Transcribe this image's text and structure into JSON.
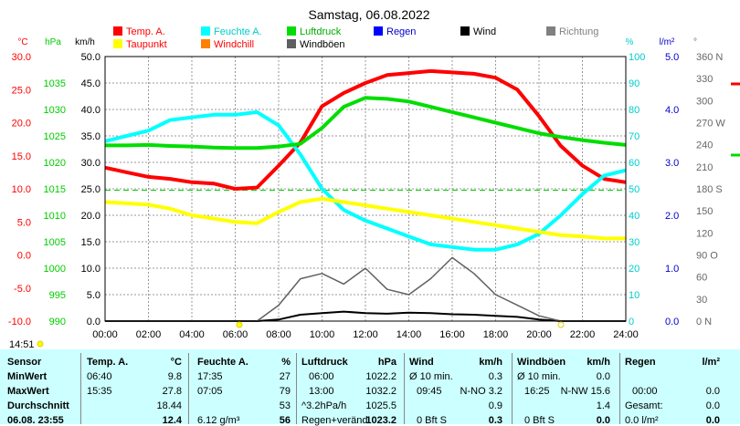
{
  "chart_data": {
    "type": "line",
    "title": "Samstag, 06.08.2022",
    "x_axis": {
      "start": "00:00",
      "end": "24:00",
      "ticks": [
        "00:00",
        "02:00",
        "04:00",
        "06:00",
        "08:00",
        "10:00",
        "12:00",
        "14:00",
        "16:00",
        "18:00",
        "20:00",
        "22:00",
        "24:00"
      ]
    },
    "axes": [
      {
        "label": "°C",
        "color": "#ff0000",
        "range": [
          -10,
          30
        ],
        "ticks": [
          "30.0",
          "25.0",
          "20.0",
          "15.0",
          "10.0",
          "5.0",
          "0.0",
          "-5.0",
          "-10.0"
        ]
      },
      {
        "label": "hPa",
        "color": "#00cc00",
        "range": [
          990,
          1040
        ],
        "ticks": [
          "1035",
          "1030",
          "1025",
          "1020",
          "1015",
          "1010",
          "1005",
          "1000",
          "995",
          "990"
        ]
      },
      {
        "label": "km/h",
        "color": "#000000",
        "range": [
          0,
          50
        ],
        "ticks": [
          "50.0",
          "45.0",
          "40.0",
          "35.0",
          "30.0",
          "25.0",
          "20.0",
          "15.0",
          "10.0",
          "5.0",
          "0.0"
        ]
      },
      {
        "label": "%",
        "color": "#00cccc",
        "range": [
          0,
          100
        ],
        "ticks": [
          "100",
          "90",
          "80",
          "70",
          "60",
          "50",
          "40",
          "30",
          "20",
          "10",
          "0"
        ]
      },
      {
        "label": "l/m²",
        "color": "#0000cc",
        "range": [
          0,
          5
        ],
        "ticks": [
          "5.0",
          "4.0",
          "3.0",
          "2.0",
          "1.0",
          "0.0"
        ]
      },
      {
        "label": "°",
        "color": "#666666",
        "range": [
          0,
          360
        ],
        "ticks": [
          "360 N",
          "330",
          "300",
          "270 W",
          "240",
          "210",
          "180 S",
          "150",
          "120",
          "90 O",
          "60",
          "30",
          "0   N"
        ]
      }
    ],
    "legend": [
      {
        "name": "Temp. A.",
        "color": "#ff0000"
      },
      {
        "name": "Feuchte A.",
        "color": "#00ffff"
      },
      {
        "name": "Luftdruck",
        "color": "#00dd00"
      },
      {
        "name": "Regen",
        "color": "#0000ff"
      },
      {
        "name": "Wind",
        "color": "#000000"
      },
      {
        "name": "Richtung",
        "color": "#808080"
      },
      {
        "name": "Taupunkt",
        "color": "#ffff00"
      },
      {
        "name": "Windchill",
        "color": "#ff8000"
      },
      {
        "name": "Windböen",
        "color": "#606060"
      }
    ],
    "series": [
      {
        "name": "Temp. A.",
        "color": "#ff0000",
        "axis": "°C",
        "x": [
          0,
          1,
          2,
          3,
          4,
          5,
          6,
          7,
          8,
          9,
          10,
          11,
          12,
          13,
          14,
          15,
          16,
          17,
          18,
          19,
          20,
          21,
          22,
          23,
          24
        ],
        "y": [
          13.2,
          12.5,
          11.8,
          11.5,
          11.0,
          10.8,
          10.0,
          10.2,
          13.5,
          17.0,
          22.5,
          24.5,
          26.0,
          27.2,
          27.5,
          27.8,
          27.6,
          27.4,
          26.8,
          25.0,
          21.0,
          16.5,
          13.5,
          11.5,
          11.0
        ]
      },
      {
        "name": "Feuchte A.",
        "color": "#00ffff",
        "axis": "%",
        "x": [
          0,
          1,
          2,
          3,
          4,
          5,
          6,
          7,
          8,
          9,
          10,
          11,
          12,
          13,
          14,
          15,
          16,
          17,
          18,
          19,
          20,
          21,
          22,
          23,
          24
        ],
        "y": [
          68,
          70,
          72,
          76,
          77,
          78,
          78,
          79,
          74,
          63,
          50,
          42,
          38,
          35,
          32,
          29,
          28,
          27,
          27,
          29,
          33,
          40,
          48,
          55,
          57
        ]
      },
      {
        "name": "Luftdruck",
        "color": "#00dd00",
        "axis": "hPa",
        "x": [
          0,
          1,
          2,
          3,
          4,
          5,
          6,
          7,
          8,
          9,
          10,
          11,
          12,
          13,
          14,
          15,
          16,
          17,
          18,
          19,
          20,
          21,
          22,
          23,
          24
        ],
        "y": [
          1023.2,
          1023.2,
          1023.3,
          1023.1,
          1023.0,
          1022.8,
          1022.7,
          1022.7,
          1023.0,
          1023.5,
          1026.5,
          1030.5,
          1032.2,
          1032.0,
          1031.5,
          1030.5,
          1029.5,
          1028.5,
          1027.5,
          1026.5,
          1025.5,
          1024.8,
          1024.2,
          1023.7,
          1023.3
        ]
      },
      {
        "name": "Taupunkt",
        "color": "#ffff00",
        "axis": "°C",
        "x": [
          0,
          1,
          2,
          3,
          4,
          5,
          6,
          7,
          8,
          9,
          10,
          11,
          12,
          13,
          14,
          15,
          16,
          17,
          18,
          19,
          20,
          21,
          22,
          23,
          24
        ],
        "y": [
          8.0,
          7.8,
          7.6,
          7.0,
          6.0,
          5.5,
          5.0,
          4.8,
          6.5,
          8.0,
          8.5,
          8.0,
          7.5,
          7.0,
          6.5,
          6.0,
          5.5,
          5.0,
          4.5,
          4.0,
          3.5,
          3.0,
          2.8,
          2.5,
          2.5
        ]
      },
      {
        "name": "Wind",
        "color": "#000000",
        "axis": "km/h",
        "x": [
          0,
          1,
          2,
          3,
          4,
          5,
          6,
          7,
          8,
          9,
          10,
          11,
          12,
          13,
          14,
          15,
          16,
          17,
          18,
          19,
          20,
          21,
          22,
          23,
          24
        ],
        "y": [
          0,
          0,
          0,
          0,
          0,
          0,
          0,
          0,
          0.3,
          1.2,
          1.5,
          1.8,
          1.5,
          1.4,
          1.6,
          1.5,
          1.3,
          1.2,
          1.0,
          0.8,
          0.3,
          0,
          0,
          0,
          0
        ]
      },
      {
        "name": "Windböen",
        "color": "#606060",
        "axis": "km/h",
        "x": [
          0,
          1,
          2,
          3,
          4,
          5,
          6,
          7,
          8,
          9,
          10,
          11,
          12,
          13,
          14,
          15,
          16,
          17,
          18,
          19,
          20,
          21,
          22,
          23,
          24
        ],
        "y": [
          0,
          0,
          0,
          0,
          0,
          0,
          0,
          0,
          3,
          8,
          9,
          7,
          10,
          6,
          5,
          8,
          12,
          9,
          5,
          3,
          1,
          0,
          0,
          0,
          0
        ]
      }
    ],
    "reference_line": {
      "name": "Taupunkt level",
      "value": 9.8,
      "axis": "°C",
      "color": "#00cc00"
    }
  },
  "status_time": "14:51",
  "table": {
    "headers": [
      "Sensor",
      "Temp. A.",
      "°C",
      "Feuchte A.",
      "%",
      "Luftdruck",
      "hPa",
      "Wind",
      "km/h",
      "Windböen",
      "km/h",
      "Regen",
      "l/m²"
    ],
    "rows": [
      {
        "label": "MinWert",
        "temp": [
          "06:40",
          "9.8"
        ],
        "hum": [
          "17:35",
          "27"
        ],
        "press": [
          "06:00",
          "1022.2"
        ],
        "wind": [
          "Ø 10 min.",
          "0.3"
        ],
        "gust": [
          "Ø 10 min.",
          "0.0"
        ],
        "rain": [
          "",
          ""
        ]
      },
      {
        "label": "MaxWert",
        "temp": [
          "15:35",
          "27.8"
        ],
        "hum": [
          "07:05",
          "79"
        ],
        "press": [
          "13:00",
          "1032.2"
        ],
        "wind": [
          "09:45",
          "N-NO 3.2"
        ],
        "gust": [
          "16:25",
          "N-NW 15.6"
        ],
        "rain": [
          "00:00",
          "0.0"
        ]
      },
      {
        "label": "Durchschnitt",
        "temp": [
          "",
          "18.44"
        ],
        "hum": [
          "",
          "53"
        ],
        "press": [
          "^3.2hPa/h",
          "1025.5"
        ],
        "wind": [
          "",
          "0.9"
        ],
        "gust": [
          "",
          "1.4"
        ],
        "rain": [
          "Gesamt:",
          "0.0"
        ]
      },
      {
        "label": "06.08. 23:55",
        "temp": [
          "",
          "12.4"
        ],
        "hum": [
          "6.12 g/m³",
          "56"
        ],
        "press": [
          "Regen+veränd.",
          "1023.2"
        ],
        "wind": [
          "0 Bft S",
          "0.3"
        ],
        "gust": [
          "0 Bft S",
          "0.0"
        ],
        "rain": [
          "0.0 l/m²",
          "0.0"
        ]
      }
    ]
  }
}
